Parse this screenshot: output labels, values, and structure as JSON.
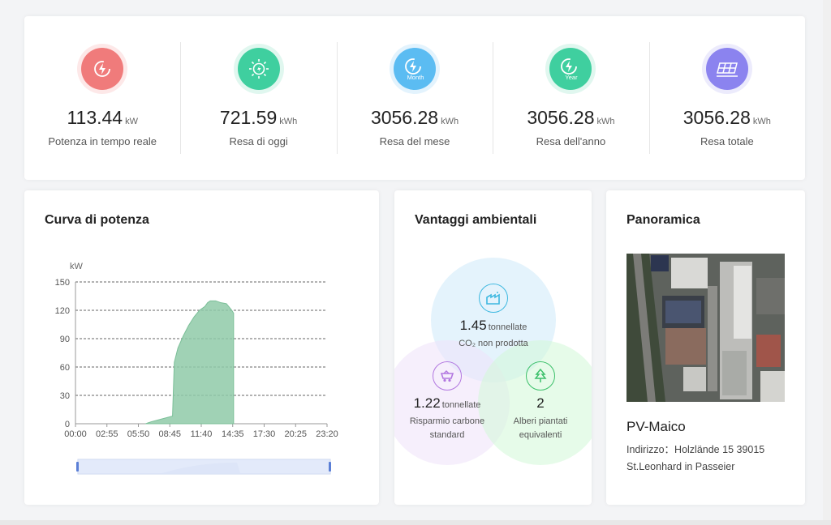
{
  "stats": [
    {
      "value": "113.44",
      "unit": "kW",
      "label": "Potenza in tempo reale",
      "icon": "lightning-icon",
      "color": "#f07b7b",
      "ring": "#fde8e8",
      "badge": ""
    },
    {
      "value": "721.59",
      "unit": "kWh",
      "label": "Resa di oggi",
      "icon": "sun-icon",
      "color": "#3fcf9f",
      "ring": "#e0f7ef",
      "badge": ""
    },
    {
      "value": "3056.28",
      "unit": "kWh",
      "label": "Resa del mese",
      "icon": "month-icon",
      "color": "#5bbcf2",
      "ring": "#e3f3fd",
      "badge": "Month"
    },
    {
      "value": "3056.28",
      "unit": "kWh",
      "label": "Resa dell'anno",
      "icon": "year-icon",
      "color": "#3fcf9f",
      "ring": "#e0f7ef",
      "badge": "Year"
    },
    {
      "value": "3056.28",
      "unit": "kWh",
      "label": "Resa totale",
      "icon": "solar-panel-icon",
      "color": "#8b83ef",
      "ring": "#ecebfc",
      "badge": ""
    }
  ],
  "power_chart": {
    "title": "Curva di potenza",
    "chart_data": {
      "type": "area",
      "ylabel": "kW",
      "ylim": [
        0,
        150
      ],
      "yticks": [
        0,
        30,
        60,
        90,
        120,
        150
      ],
      "xticks": [
        "00:00",
        "02:55",
        "05:50",
        "08:45",
        "11:40",
        "14:35",
        "17:30",
        "20:25",
        "23:20"
      ],
      "grid": true,
      "series": [
        {
          "x": [
            "06:30",
            "07:00",
            "08:00",
            "09:00",
            "09:10",
            "09:30",
            "10:00",
            "10:30",
            "11:00",
            "11:30",
            "12:00",
            "12:15",
            "12:30",
            "13:00",
            "13:30",
            "14:00",
            "14:30",
            "14:40"
          ],
          "y": [
            0,
            2,
            5,
            8,
            65,
            80,
            93,
            104,
            113,
            120,
            124,
            128,
            130,
            130,
            128,
            127,
            120,
            117
          ]
        }
      ]
    }
  },
  "environment": {
    "title": "Vantaggi ambientali",
    "co2": {
      "value": "1.45",
      "unit": "tonnellate",
      "label": "CO₂ non prodotta",
      "icon": "factory-icon"
    },
    "coal": {
      "value": "1.22",
      "unit": "tonnellate",
      "label_line1": "Risparmio carbone",
      "label_line2": "standard",
      "icon": "coal-cart-icon"
    },
    "trees": {
      "value": "2",
      "label_line1": "Alberi piantati",
      "label_line2": "equivalenti",
      "icon": "tree-icon"
    }
  },
  "overview": {
    "title": "Panoramica",
    "plant_name": "PV-Maico",
    "address_label": "Indirizzo：",
    "address_value": "Holzlände 15 39015 St.Leonhard in Passeier"
  }
}
